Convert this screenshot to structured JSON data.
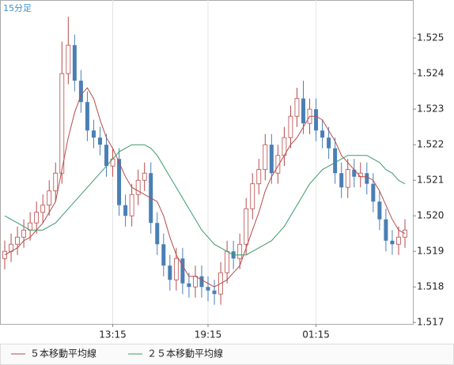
{
  "chart_data": {
    "type": "candlestick",
    "title": "15分足",
    "categories": [
      null,
      null,
      null,
      null,
      null,
      null,
      null,
      null,
      null,
      null,
      null,
      null,
      null,
      null,
      null,
      null,
      null,
      "13:15",
      null,
      null,
      null,
      null,
      null,
      null,
      null,
      null,
      null,
      null,
      null,
      null,
      null,
      null,
      "19:15",
      null,
      null,
      null,
      null,
      null,
      null,
      null,
      null,
      null,
      null,
      null,
      null,
      null,
      null,
      null,
      null,
      "01:15",
      null,
      null,
      null,
      null,
      null,
      null,
      null,
      null,
      null,
      null,
      null,
      null,
      null,
      null
    ],
    "up_color": "#b84a4a",
    "down_color": "#4a7fb5",
    "open": [
      1.5188,
      1.519,
      1.5192,
      1.5194,
      1.5196,
      1.5198,
      1.5201,
      1.5203,
      1.5207,
      1.5212,
      1.524,
      1.5248,
      1.5238,
      1.5232,
      1.5224,
      1.5222,
      1.522,
      1.5214,
      1.5216,
      1.5203,
      1.52,
      1.5206,
      1.521,
      1.5212,
      1.5198,
      1.5192,
      1.5186,
      1.5182,
      1.5188,
      1.5181,
      1.518,
      1.5183,
      1.518,
      1.5179,
      1.5178,
      1.5184,
      1.519,
      1.5188,
      1.5192,
      1.5202,
      1.5209,
      1.5213,
      1.522,
      1.5212,
      1.5217,
      1.5222,
      1.5228,
      1.5233,
      1.5226,
      1.523,
      1.5224,
      1.5222,
      1.5219,
      1.5212,
      1.5208,
      1.5213,
      1.5211,
      1.5212,
      1.5209,
      1.5204,
      1.5199,
      1.5193,
      1.5192,
      1.5194
    ],
    "high": [
      1.5193,
      1.5195,
      1.5197,
      1.5199,
      1.5201,
      1.5204,
      1.5206,
      1.521,
      1.5215,
      1.5249,
      1.5256,
      1.5251,
      1.5241,
      1.5235,
      1.5227,
      1.5225,
      1.5223,
      1.5219,
      1.5219,
      1.5206,
      1.5209,
      1.5213,
      1.5215,
      1.5215,
      1.5201,
      1.5195,
      1.5189,
      1.5191,
      1.5191,
      1.5184,
      1.5186,
      1.5186,
      1.5183,
      1.5182,
      1.5187,
      1.5193,
      1.5193,
      1.5195,
      1.5205,
      1.5212,
      1.5216,
      1.5223,
      1.5223,
      1.522,
      1.5225,
      1.5231,
      1.5236,
      1.5238,
      1.5233,
      1.5233,
      1.5227,
      1.5225,
      1.5222,
      1.5215,
      1.5216,
      1.5216,
      1.5215,
      1.5215,
      1.5212,
      1.5207,
      1.5202,
      1.5196,
      1.5197,
      1.5199
    ],
    "low": [
      1.5185,
      1.5187,
      1.5189,
      1.5191,
      1.5193,
      1.5195,
      1.5198,
      1.52,
      1.5204,
      1.5209,
      1.5237,
      1.5235,
      1.5229,
      1.5221,
      1.5219,
      1.5217,
      1.5211,
      1.5211,
      1.52,
      1.5197,
      1.5197,
      1.5203,
      1.5207,
      1.5195,
      1.5189,
      1.5183,
      1.5179,
      1.5179,
      1.5178,
      1.5177,
      1.5177,
      1.5177,
      1.5176,
      1.5175,
      1.5175,
      1.5181,
      1.5185,
      1.5185,
      1.5189,
      1.5199,
      1.5206,
      1.521,
      1.5209,
      1.5209,
      1.5214,
      1.5219,
      1.5225,
      1.5223,
      1.5223,
      1.5221,
      1.5219,
      1.5216,
      1.5209,
      1.5205,
      1.5205,
      1.5208,
      1.5208,
      1.5206,
      1.5201,
      1.5196,
      1.519,
      1.5189,
      1.5189,
      1.5191
    ],
    "close": [
      1.519,
      1.5192,
      1.5194,
      1.5196,
      1.5198,
      1.5201,
      1.5203,
      1.5207,
      1.5212,
      1.524,
      1.5248,
      1.5238,
      1.5232,
      1.5224,
      1.5222,
      1.522,
      1.5214,
      1.5216,
      1.5203,
      1.52,
      1.5206,
      1.521,
      1.5212,
      1.5198,
      1.5192,
      1.5186,
      1.5182,
      1.5188,
      1.5181,
      1.518,
      1.5183,
      1.518,
      1.5179,
      1.5178,
      1.5184,
      1.519,
      1.5188,
      1.5192,
      1.5202,
      1.5209,
      1.5213,
      1.522,
      1.5212,
      1.5217,
      1.5222,
      1.5228,
      1.5233,
      1.5226,
      1.523,
      1.5224,
      1.5222,
      1.5219,
      1.5212,
      1.5208,
      1.5213,
      1.5211,
      1.5212,
      1.5209,
      1.5204,
      1.5199,
      1.5193,
      1.5192,
      1.5194,
      1.5196
    ],
    "series": [
      {
        "name": "５本移動平均線",
        "color": "#b84a4a",
        "values": [
          1.5189,
          1.519,
          1.5191,
          1.5193,
          1.5194,
          1.5196,
          1.5198,
          1.5201,
          1.5204,
          1.5213,
          1.5222,
          1.5229,
          1.5234,
          1.5236,
          1.5233,
          1.5227,
          1.5222,
          1.5219,
          1.5215,
          1.5211,
          1.5208,
          1.5207,
          1.5206,
          1.5205,
          1.5204,
          1.52,
          1.5194,
          1.5189,
          1.5186,
          1.5183,
          1.5183,
          1.5182,
          1.5181,
          1.518,
          1.5181,
          1.5182,
          1.5184,
          1.5186,
          1.5191,
          1.5196,
          1.5201,
          1.5207,
          1.5211,
          1.5214,
          1.5217,
          1.522,
          1.5222,
          1.5225,
          1.5228,
          1.5228,
          1.5227,
          1.5224,
          1.5221,
          1.5217,
          1.5215,
          1.5213,
          1.5211,
          1.5211,
          1.521,
          1.5207,
          1.5203,
          1.5199,
          1.5196,
          1.5195
        ]
      },
      {
        "name": "２５本移動平均線",
        "color": "#3a9a6a",
        "values": [
          1.52,
          1.5199,
          1.5198,
          1.5197,
          1.5196,
          1.5196,
          1.5196,
          1.5197,
          1.5198,
          1.52,
          1.5202,
          1.5204,
          1.5206,
          1.5208,
          1.521,
          1.5212,
          1.5214,
          1.5216,
          1.5218,
          1.5219,
          1.522,
          1.522,
          1.522,
          1.5219,
          1.5217,
          1.5214,
          1.5211,
          1.5208,
          1.5205,
          1.5202,
          1.5199,
          1.5196,
          1.5194,
          1.5192,
          1.5191,
          1.519,
          1.5189,
          1.5189,
          1.5189,
          1.519,
          1.5191,
          1.5192,
          1.5193,
          1.5195,
          1.5197,
          1.52,
          1.5203,
          1.5206,
          1.5209,
          1.5211,
          1.5213,
          1.5214,
          1.5215,
          1.5216,
          1.5217,
          1.5217,
          1.5217,
          1.5217,
          1.5216,
          1.5215,
          1.5213,
          1.5212,
          1.521,
          1.5209
        ]
      }
    ],
    "ylim": [
      1.51696,
      1.52607
    ],
    "yticks": [
      1.517,
      1.518,
      1.519,
      {
        "value": 1.52,
        "label": "1.520"
      },
      1.521,
      1.522,
      1.523,
      1.524,
      1.525
    ],
    "grid": true
  }
}
